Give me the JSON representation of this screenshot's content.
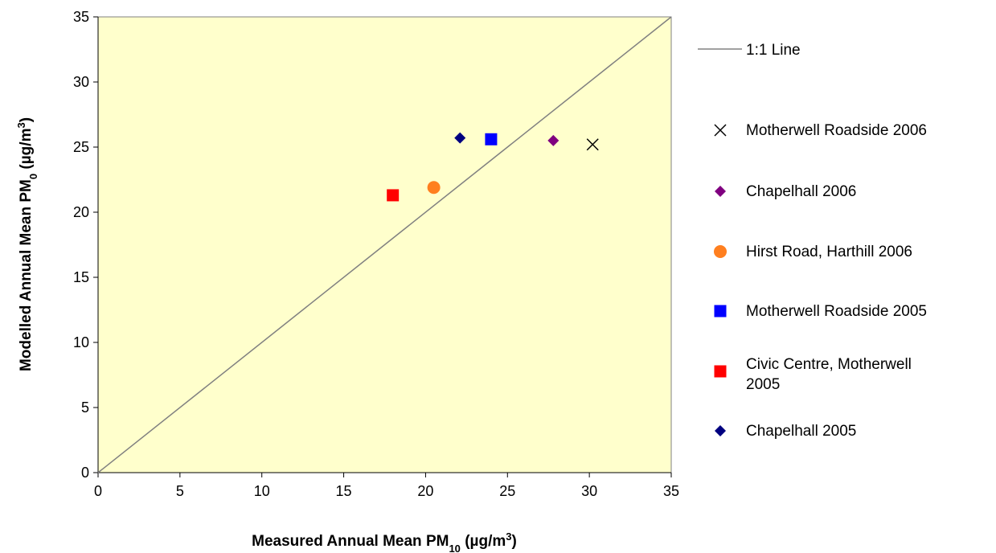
{
  "chart_data": {
    "type": "scatter",
    "xlabel": "Measured Annual Mean PM10 (µg/m3)",
    "xlabel_parts": {
      "main": "Measured Annual Mean PM",
      "sub": "10",
      "unit_open": " (",
      "mu": "µ",
      "unit_g": "g/m",
      "sup": "3",
      "unit_close": ")"
    },
    "ylabel": "Modelled Annual Mean PM0 (µg/m3)",
    "ylabel_parts": {
      "main": "Modelled Annual Mean PM",
      "sub": "0",
      "unit_open": " (",
      "mu": "µ",
      "unit_g": "g/m",
      "sup": "3",
      "unit_close": ")"
    },
    "xlim": [
      0,
      35
    ],
    "ylim": [
      0,
      35
    ],
    "xticks": [
      "0",
      "5",
      "10",
      "15",
      "20",
      "25",
      "30",
      "35"
    ],
    "yticks": [
      "0",
      "5",
      "10",
      "15",
      "20",
      "25",
      "30",
      "35"
    ],
    "grid": false,
    "plot_background": "#ffffcc",
    "legend_position": "right",
    "line": {
      "name": "1:1 Line",
      "x": [
        0,
        35
      ],
      "y": [
        0,
        35
      ],
      "color": "#808080"
    },
    "series": [
      {
        "name": "Motherwell Roadside 2006",
        "marker": "x",
        "color": "#000000",
        "x": [
          30.2
        ],
        "y": [
          25.2
        ]
      },
      {
        "name": "Chapelhall 2006",
        "marker": "diamond",
        "color": "#800080",
        "x": [
          27.8
        ],
        "y": [
          25.5
        ]
      },
      {
        "name": "Hirst Road, Harthill 2006",
        "marker": "circle",
        "color": "#ff7f1f",
        "x": [
          20.5
        ],
        "y": [
          21.9
        ]
      },
      {
        "name": "Motherwell Roadside 2005",
        "marker": "square",
        "color": "#0000ff",
        "x": [
          24.0
        ],
        "y": [
          25.6
        ]
      },
      {
        "name": "Civic Centre, Motherwell 2005",
        "legend_lines": [
          "Civic Centre, Motherwell",
          "2005"
        ],
        "marker": "square",
        "color": "#ff0000",
        "x": [
          18.0
        ],
        "y": [
          21.3
        ]
      },
      {
        "name": "Chapelhall 2005",
        "marker": "diamond",
        "color": "#000080",
        "x": [
          22.1
        ],
        "y": [
          25.7
        ]
      }
    ]
  }
}
